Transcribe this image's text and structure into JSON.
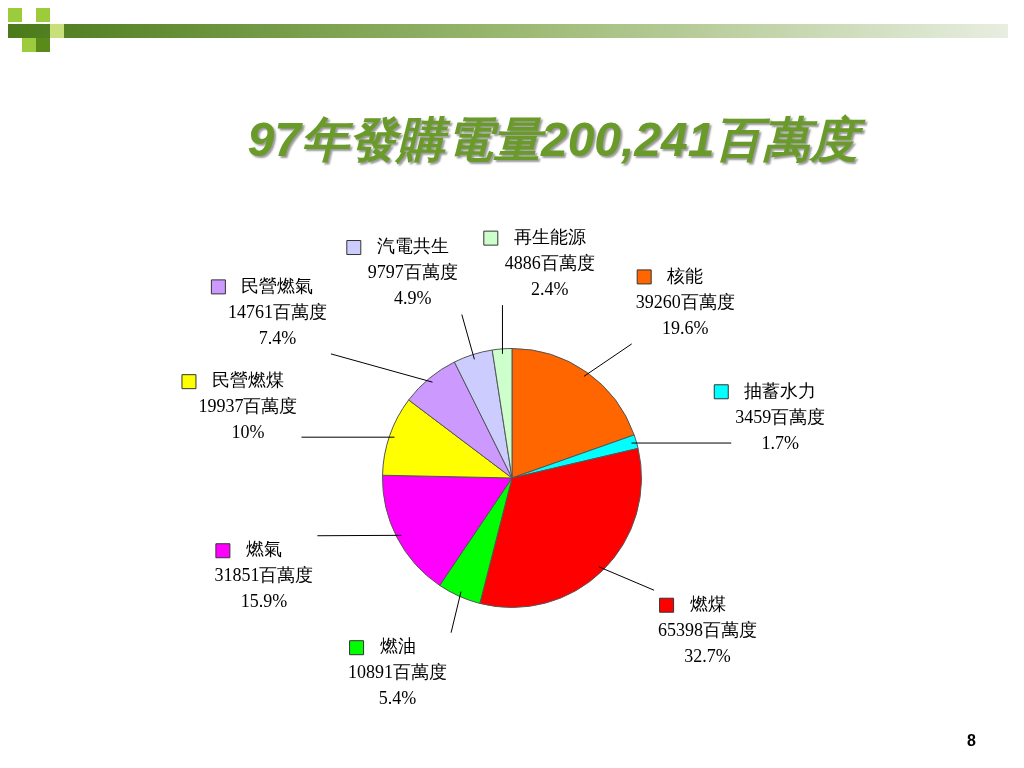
{
  "chart_data": {
    "type": "pie",
    "title": "97年發購電量200,241百萬度",
    "categories": [
      "核能",
      "抽蓄水力",
      "燃煤",
      "燃油",
      "燃氣",
      "民營燃煤",
      "民營燃氣",
      "汽電共生",
      "再生能源"
    ],
    "values": [
      39260,
      3459,
      65398,
      10891,
      31851,
      19937,
      14761,
      9797,
      4886
    ],
    "value_labels": [
      "39260百萬度\n19.6%",
      "3459百萬度\n1.7%",
      "65398百萬度\n32.7%",
      "10891百萬度\n5.4%",
      "31851百萬度\n15.9%",
      "19937百萬度\n10%",
      "14761百萬度\n7.4%",
      "9797百萬度\n4.9%",
      "4886百萬度\n2.4%"
    ],
    "colors": [
      "#ff6600",
      "#00ffff",
      "#ff0000",
      "#00ff00",
      "#ff00ff",
      "#ffff00",
      "#cc99ff",
      "#ccccff",
      "#ccffcc"
    ],
    "legend": true,
    "annotations": [
      "8"
    ]
  }
}
